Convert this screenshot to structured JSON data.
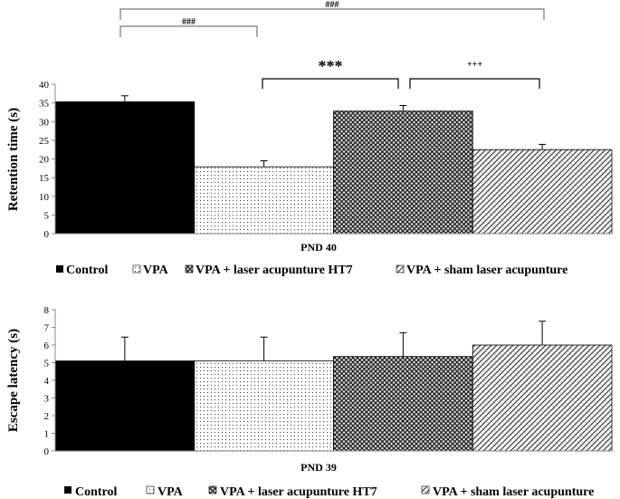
{
  "chart_data": [
    {
      "type": "bar",
      "title": "",
      "xlabel": "PND 40",
      "ylabel": "Retention time (s)",
      "ylim": [
        0,
        40
      ],
      "yticks": [
        0,
        5,
        10,
        15,
        20,
        25,
        30,
        35,
        40
      ],
      "grid": false,
      "legend_position": "bottom",
      "categories": [
        "Control",
        "VPA",
        "VPA + laser acupunture HT7",
        "VPA + sham laser acupunture"
      ],
      "values": [
        35.3,
        17.9,
        32.8,
        22.5
      ],
      "errors": [
        1.6,
        1.6,
        1.5,
        1.4
      ],
      "annotations": [
        {
          "from": 0,
          "to": 1,
          "label": "###",
          "level": "upper-1"
        },
        {
          "from": 0,
          "to": 3,
          "label": "###",
          "level": "upper-2"
        },
        {
          "from": 1,
          "to": 2,
          "label": "***",
          "level": "lower"
        },
        {
          "from": 2,
          "to": 3,
          "label": "+++",
          "level": "lower"
        }
      ]
    },
    {
      "type": "bar",
      "title": "",
      "xlabel": "PND 39",
      "ylabel": "Escape latency (s)",
      "ylim": [
        0,
        8
      ],
      "yticks": [
        0,
        1,
        2,
        3,
        4,
        5,
        6,
        7,
        8
      ],
      "grid": false,
      "legend_position": "bottom",
      "categories": [
        "Control",
        "VPA",
        "VPA + laser acupunture HT7",
        "VPA + sham laser acupunture"
      ],
      "values": [
        5.1,
        5.1,
        5.35,
        6.0
      ],
      "errors": [
        1.35,
        1.35,
        1.35,
        1.35
      ]
    }
  ],
  "legend": {
    "items": [
      "Control",
      "VPA",
      "VPA + laser acupunture HT7",
      "VPA + sham laser acupunture"
    ]
  },
  "patterns": [
    "solid-black",
    "dots",
    "dense-crosshatch",
    "diagonal-hatch"
  ],
  "colors": {
    "ink": "#000000",
    "bracket_gray": "#777777"
  }
}
